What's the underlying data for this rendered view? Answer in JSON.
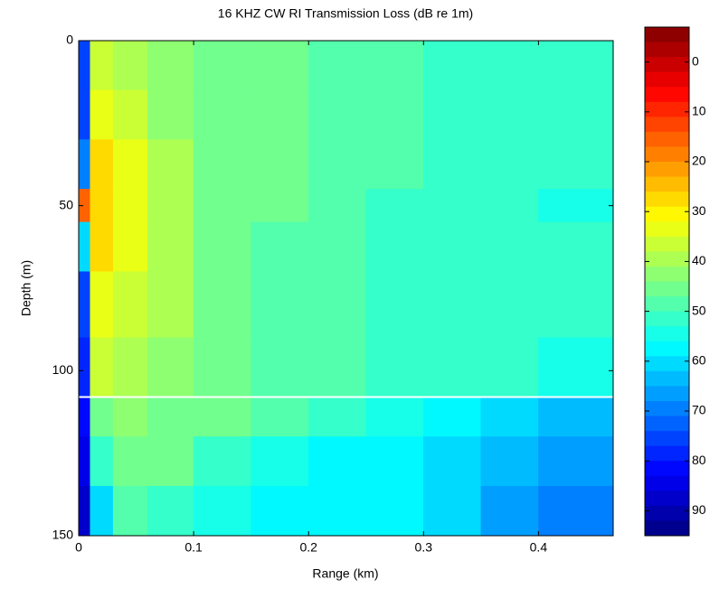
{
  "chart_data": {
    "type": "heatmap",
    "title": "16 KHZ CW RI Transmission Loss (dB re 1m)",
    "x_label": "Range (km)",
    "y_label": "Depth (m)",
    "x_edges": [
      0,
      0.01,
      0.03,
      0.06,
      0.1,
      0.15,
      0.2,
      0.25,
      0.3,
      0.35,
      0.4,
      0.465
    ],
    "y_edges": [
      0,
      15,
      30,
      45,
      55,
      70,
      90,
      108,
      120,
      135,
      150
    ],
    "z": [
      [
        75,
        35,
        38,
        42,
        45,
        45,
        47,
        48,
        50,
        52,
        50
      ],
      [
        75,
        33,
        36,
        42,
        45,
        46,
        48,
        48,
        50,
        52,
        52
      ],
      [
        70,
        28,
        34,
        40,
        45,
        46,
        48,
        48,
        50,
        52,
        52
      ],
      [
        15,
        26,
        33,
        40,
        45,
        46,
        48,
        50,
        50,
        52,
        53
      ],
      [
        60,
        28,
        34,
        40,
        45,
        47,
        48,
        50,
        50,
        52,
        52
      ],
      [
        75,
        32,
        36,
        40,
        45,
        47,
        48,
        50,
        50,
        52,
        52
      ],
      [
        78,
        36,
        38,
        41,
        45,
        47,
        48,
        50,
        50,
        52,
        53
      ],
      [
        82,
        45,
        42,
        44,
        46,
        48,
        52,
        55,
        58,
        60,
        62
      ],
      [
        85,
        52,
        45,
        46,
        50,
        55,
        58,
        58,
        60,
        63,
        66
      ],
      [
        88,
        60,
        48,
        50,
        55,
        57,
        58,
        58,
        60,
        65,
        70
      ]
    ],
    "horizontal_line": 108,
    "xlim": [
      0,
      0.465
    ],
    "xticks": [
      0,
      0.1,
      0.2,
      0.3,
      0.4
    ],
    "ylim": [
      0,
      150
    ],
    "yticks": [
      0,
      50,
      100,
      150
    ],
    "y_reversed": true,
    "colormap": "jet",
    "color_levels": 34,
    "clim": [
      -7,
      95
    ],
    "cticks": [
      0,
      10,
      20,
      30,
      40,
      50,
      60,
      70,
      80,
      90
    ]
  }
}
